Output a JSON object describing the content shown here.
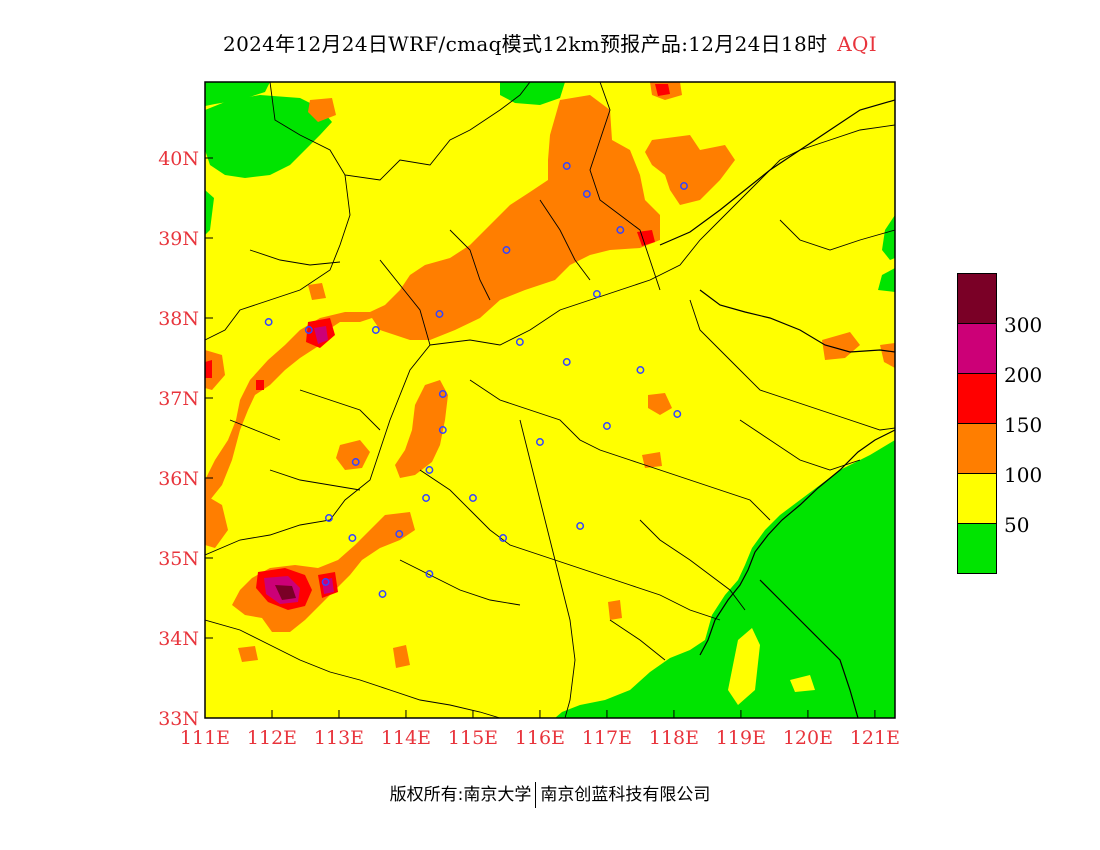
{
  "header": {
    "title": "2024年12月24日WRF/cmaq模式12km预报产品:12月24日18时",
    "variable": "AQI"
  },
  "footer": {
    "copyright": "版权所有:南京大学",
    "company": "南京创蓝科技有限公司"
  },
  "axes": {
    "lon_ticks": [
      "111E",
      "112E",
      "113E",
      "114E",
      "115E",
      "116E",
      "117E",
      "118E",
      "119E",
      "120E",
      "121E"
    ],
    "lat_ticks": [
      "33N",
      "34N",
      "35N",
      "36N",
      "37N",
      "38N",
      "39N",
      "40N"
    ],
    "tick_color": "#e8343c",
    "lon_range": [
      111,
      121.3
    ],
    "lat_range": [
      33,
      40.95
    ]
  },
  "legend": {
    "labels": [
      "300",
      "200",
      "150",
      "100",
      "50"
    ],
    "colors_top_to_bottom": [
      "#7a0026",
      "#cc0077",
      "#ff0000",
      "#ff7e00",
      "#ffff00",
      "#00e400"
    ]
  },
  "map_colors": {
    "good": "#00e400",
    "moderate": "#ffff00",
    "unhealthy_sensitive": "#ff7e00",
    "unhealthy": "#ff0000",
    "very_unhealthy": "#cc0077",
    "hazardous": "#7a0026",
    "boundary": "#000000",
    "city_marker": "#3344ff"
  },
  "city_markers": [
    [
      116.4,
      39.9
    ],
    [
      116.7,
      39.55
    ],
    [
      117.2,
      39.1
    ],
    [
      118.15,
      39.65
    ],
    [
      115.5,
      38.85
    ],
    [
      114.5,
      38.05
    ],
    [
      116.85,
      38.3
    ],
    [
      115.7,
      37.7
    ],
    [
      116.4,
      37.45
    ],
    [
      117.5,
      37.35
    ],
    [
      114.55,
      37.05
    ],
    [
      114.55,
      36.6
    ],
    [
      113.25,
      36.2
    ],
    [
      114.35,
      36.1
    ],
    [
      116.0,
      36.45
    ],
    [
      117.0,
      36.65
    ],
    [
      118.05,
      36.8
    ],
    [
      114.3,
      35.75
    ],
    [
      115.0,
      35.75
    ],
    [
      112.85,
      35.5
    ],
    [
      113.2,
      35.25
    ],
    [
      113.9,
      35.3
    ],
    [
      115.45,
      35.25
    ],
    [
      116.6,
      35.4
    ],
    [
      114.35,
      34.8
    ],
    [
      113.65,
      34.55
    ],
    [
      112.8,
      34.7
    ],
    [
      111.95,
      37.95
    ],
    [
      112.55,
      37.85
    ],
    [
      113.55,
      37.85
    ]
  ]
}
